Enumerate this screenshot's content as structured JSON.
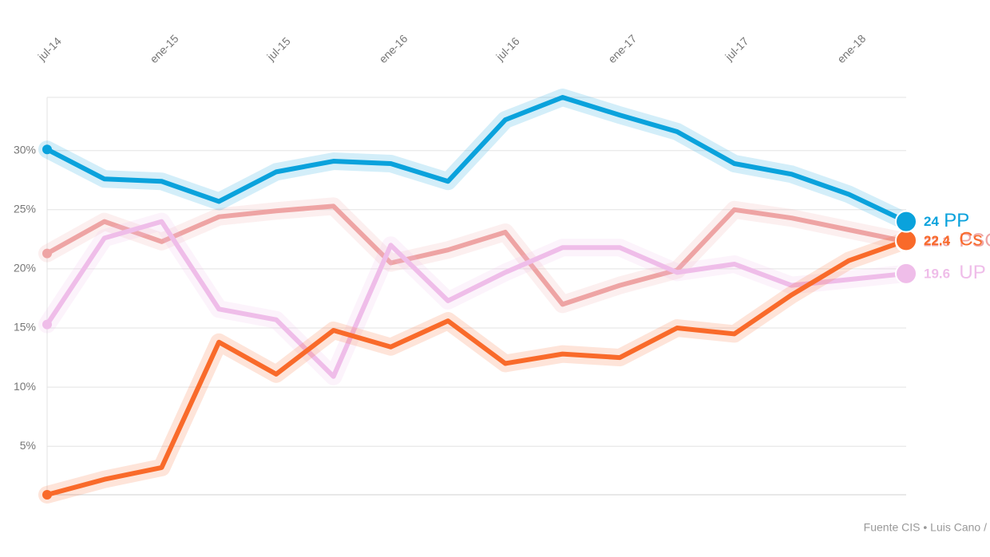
{
  "chart_data": {
    "type": "line",
    "categories": [
      "jul-14",
      null,
      "ene-15",
      null,
      "jul-15",
      null,
      "ene-16",
      null,
      "jul-16",
      null,
      "ene-17",
      null,
      "jul-17",
      null,
      "ene-18",
      null
    ],
    "series": [
      {
        "name": "PSOE",
        "color": "#eea4a4",
        "values": [
          21.3,
          24.0,
          22.3,
          24.4,
          24.9,
          25.3,
          20.5,
          21.6,
          23.1,
          17.0,
          18.6,
          19.9,
          25.0,
          24.3,
          23.3,
          22.3
        ]
      },
      {
        "name": "UP",
        "color": "#efbde9",
        "values": [
          15.3,
          22.6,
          24.0,
          16.6,
          15.7,
          10.9,
          22.0,
          17.3,
          19.7,
          21.8,
          21.8,
          19.7,
          20.4,
          18.6,
          19.1,
          19.6
        ]
      },
      {
        "name": "Cs",
        "color": "#f96a2a",
        "values": [
          0.9,
          2.2,
          3.2,
          13.8,
          11.1,
          14.8,
          13.4,
          15.6,
          12.0,
          12.8,
          12.5,
          15.0,
          14.5,
          17.8,
          20.7,
          22.4
        ]
      },
      {
        "name": "PP",
        "color": "#0aa2dc",
        "values": [
          30.1,
          27.6,
          27.4,
          25.7,
          28.2,
          29.1,
          28.9,
          27.4,
          32.6,
          34.5,
          33.0,
          31.6,
          28.9,
          28.0,
          26.3,
          24.0
        ]
      }
    ],
    "ylim": [
      0.9,
      34.5
    ],
    "yticks": [
      {
        "value": 5,
        "label": "5%"
      },
      {
        "value": 10,
        "label": "10%"
      },
      {
        "value": 15,
        "label": "15%"
      },
      {
        "value": 20,
        "label": "20%"
      },
      {
        "value": 25,
        "label": "25%"
      },
      {
        "value": 30,
        "label": "30%"
      }
    ],
    "grid": true,
    "source": "Fuente CIS • Luis Cano /"
  }
}
